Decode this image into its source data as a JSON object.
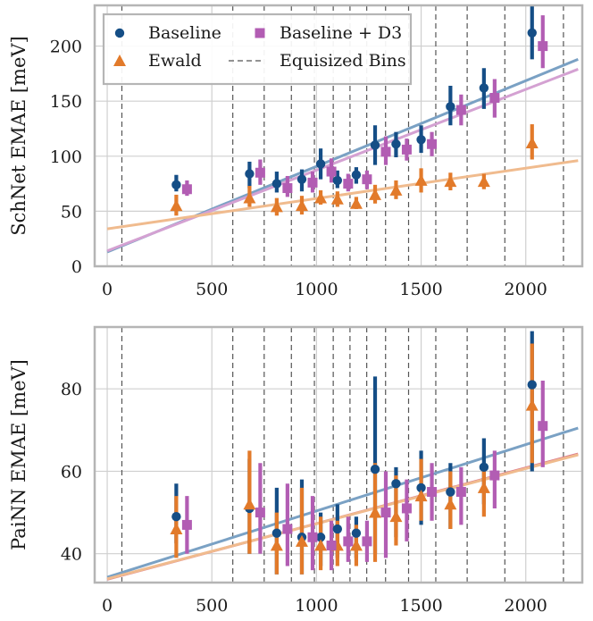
{
  "colors": {
    "baseline": "#154e86",
    "ewald": "#e27a2a",
    "d3": "#b25db3",
    "baseline_fit": "#7aa1c4",
    "ewald_fit": "#f0bb8e",
    "d3_fit": "#d4a1d2",
    "d3_fit_bottom": "#dd7c8c",
    "bins": "#555555",
    "grid": "#cfcfcf",
    "frame": "#b5b5b5"
  },
  "chart_data": [
    {
      "type": "scatter",
      "ylabel": "SchNet EMAE [meV]",
      "xlim": [
        -60,
        2270
      ],
      "ylim": [
        0,
        237
      ],
      "xticks": [
        0,
        500,
        1000,
        1500,
        2000
      ],
      "xtick_labels": [
        "0",
        "500",
        "1000",
        "1500",
        "2000"
      ],
      "yticks": [
        0,
        50,
        100,
        150,
        200
      ],
      "ytick_labels": [
        "0",
        "50",
        "100",
        "150",
        "200"
      ],
      "grid": true,
      "bins": [
        70,
        600,
        750,
        880,
        990,
        1080,
        1160,
        1240,
        1330,
        1440,
        1570,
        1720,
        1900,
        2180
      ],
      "legend": {
        "placement": "upper-left",
        "entries": [
          {
            "label": "Baseline",
            "series": "baseline",
            "marker": "circle"
          },
          {
            "label": "Baseline + D3",
            "series": "d3",
            "marker": "square"
          },
          {
            "label": "Ewald",
            "series": "ewald",
            "marker": "triangle"
          },
          {
            "label": "Equisized Bins",
            "series": "bins",
            "marker": "dashed-line"
          }
        ]
      },
      "series": [
        {
          "name": "Baseline",
          "key": "baseline",
          "marker": "circle",
          "x_offset": 0,
          "points": [
            {
              "x": 330,
              "y": 74,
              "lo": 68,
              "hi": 83
            },
            {
              "x": 680,
              "y": 84,
              "lo": 71,
              "hi": 95
            },
            {
              "x": 810,
              "y": 75,
              "lo": 67,
              "hi": 86
            },
            {
              "x": 930,
              "y": 79,
              "lo": 68,
              "hi": 88
            },
            {
              "x": 1020,
              "y": 93,
              "lo": 79,
              "hi": 107
            },
            {
              "x": 1100,
              "y": 78,
              "lo": 71,
              "hi": 87
            },
            {
              "x": 1190,
              "y": 83,
              "lo": 75,
              "hi": 90
            },
            {
              "x": 1280,
              "y": 110,
              "lo": 92,
              "hi": 128
            },
            {
              "x": 1380,
              "y": 111,
              "lo": 99,
              "hi": 122
            },
            {
              "x": 1500,
              "y": 115,
              "lo": 103,
              "hi": 128
            },
            {
              "x": 1640,
              "y": 145,
              "lo": 128,
              "hi": 164
            },
            {
              "x": 1800,
              "y": 162,
              "lo": 143,
              "hi": 180
            },
            {
              "x": 2030,
              "y": 212,
              "lo": 188,
              "hi": 240
            }
          ]
        },
        {
          "name": "Ewald",
          "key": "ewald",
          "marker": "triangle",
          "x_offset": 0,
          "points": [
            {
              "x": 330,
              "y": 55,
              "lo": 46,
              "hi": 65
            },
            {
              "x": 680,
              "y": 62,
              "lo": 54,
              "hi": 73
            },
            {
              "x": 810,
              "y": 54,
              "lo": 46,
              "hi": 62
            },
            {
              "x": 930,
              "y": 55,
              "lo": 47,
              "hi": 64
            },
            {
              "x": 1020,
              "y": 62,
              "lo": 56,
              "hi": 69
            },
            {
              "x": 1100,
              "y": 61,
              "lo": 54,
              "hi": 68
            },
            {
              "x": 1190,
              "y": 57,
              "lo": 52,
              "hi": 63
            },
            {
              "x": 1280,
              "y": 65,
              "lo": 57,
              "hi": 74
            },
            {
              "x": 1380,
              "y": 69,
              "lo": 61,
              "hi": 78
            },
            {
              "x": 1500,
              "y": 78,
              "lo": 67,
              "hi": 89
            },
            {
              "x": 1640,
              "y": 77,
              "lo": 69,
              "hi": 85
            },
            {
              "x": 1800,
              "y": 77,
              "lo": 70,
              "hi": 84
            },
            {
              "x": 2030,
              "y": 112,
              "lo": 97,
              "hi": 129
            }
          ]
        },
        {
          "name": "Baseline + D3",
          "key": "d3",
          "marker": "square",
          "x_offset": 12,
          "points": [
            {
              "x": 330,
              "y": 70,
              "lo": 64,
              "hi": 78
            },
            {
              "x": 680,
              "y": 85,
              "lo": 74,
              "hi": 97
            },
            {
              "x": 810,
              "y": 71,
              "lo": 63,
              "hi": 82
            },
            {
              "x": 930,
              "y": 76,
              "lo": 67,
              "hi": 86
            },
            {
              "x": 1020,
              "y": 86,
              "lo": 76,
              "hi": 98
            },
            {
              "x": 1100,
              "y": 75,
              "lo": 68,
              "hi": 84
            },
            {
              "x": 1190,
              "y": 79,
              "lo": 70,
              "hi": 87
            },
            {
              "x": 1280,
              "y": 104,
              "lo": 92,
              "hi": 118
            },
            {
              "x": 1380,
              "y": 106,
              "lo": 96,
              "hi": 116
            },
            {
              "x": 1500,
              "y": 111,
              "lo": 100,
              "hi": 122
            },
            {
              "x": 1640,
              "y": 142,
              "lo": 128,
              "hi": 156
            },
            {
              "x": 1800,
              "y": 153,
              "lo": 135,
              "hi": 170
            },
            {
              "x": 2030,
              "y": 200,
              "lo": 180,
              "hi": 228
            }
          ]
        }
      ],
      "fits": [
        {
          "key": "baseline_fit",
          "x": [
            0,
            2250
          ],
          "y": [
            13,
            188
          ]
        },
        {
          "key": "d3_fit",
          "x": [
            0,
            2250
          ],
          "y": [
            14,
            179
          ]
        },
        {
          "key": "ewald_fit",
          "x": [
            0,
            2250
          ],
          "y": [
            34,
            96
          ]
        }
      ]
    },
    {
      "type": "scatter",
      "ylabel": "PaiNN EMAE [meV]",
      "xlim": [
        -60,
        2270
      ],
      "ylim": [
        33,
        95
      ],
      "xticks": [
        0,
        500,
        1000,
        1500,
        2000
      ],
      "xtick_labels": [
        "0",
        "500",
        "1000",
        "1500",
        "2000"
      ],
      "yticks": [
        40,
        60,
        80
      ],
      "ytick_labels": [
        "40",
        "60",
        "80"
      ],
      "grid": true,
      "bins": [
        70,
        600,
        750,
        880,
        990,
        1080,
        1160,
        1240,
        1330,
        1440,
        1570,
        1720,
        1900,
        2180
      ],
      "series": [
        {
          "name": "Baseline",
          "key": "baseline",
          "marker": "circle",
          "x_offset": 0,
          "points": [
            {
              "x": 330,
              "y": 49,
              "lo": 42.5,
              "hi": 57
            },
            {
              "x": 680,
              "y": 51,
              "lo": 40,
              "hi": 63
            },
            {
              "x": 810,
              "y": 45,
              "lo": 35,
              "hi": 56
            },
            {
              "x": 930,
              "y": 44,
              "lo": 35,
              "hi": 58
            },
            {
              "x": 1020,
              "y": 44,
              "lo": 37,
              "hi": 50
            },
            {
              "x": 1100,
              "y": 46,
              "lo": 39,
              "hi": 52
            },
            {
              "x": 1190,
              "y": 45,
              "lo": 39,
              "hi": 49
            },
            {
              "x": 1280,
              "y": 60.5,
              "lo": 40,
              "hi": 83
            },
            {
              "x": 1380,
              "y": 57,
              "lo": 44,
              "hi": 61
            },
            {
              "x": 1500,
              "y": 56,
              "lo": 47,
              "hi": 65
            },
            {
              "x": 1640,
              "y": 55,
              "lo": 46,
              "hi": 62
            },
            {
              "x": 1800,
              "y": 61,
              "lo": 52,
              "hi": 68
            },
            {
              "x": 2030,
              "y": 81,
              "lo": 60,
              "hi": 94
            }
          ]
        },
        {
          "name": "Ewald",
          "key": "ewald",
          "marker": "triangle",
          "x_offset": 0,
          "points": [
            {
              "x": 330,
              "y": 46,
              "lo": 39,
              "hi": 54
            },
            {
              "x": 680,
              "y": 52,
              "lo": 40,
              "hi": 65
            },
            {
              "x": 810,
              "y": 42,
              "lo": 35,
              "hi": 50
            },
            {
              "x": 930,
              "y": 43,
              "lo": 35,
              "hi": 56
            },
            {
              "x": 1020,
              "y": 42,
              "lo": 36,
              "hi": 49
            },
            {
              "x": 1100,
              "y": 42,
              "lo": 37,
              "hi": 48
            },
            {
              "x": 1190,
              "y": 42,
              "lo": 37,
              "hi": 47
            },
            {
              "x": 1280,
              "y": 50,
              "lo": 38,
              "hi": 62
            },
            {
              "x": 1380,
              "y": 49,
              "lo": 42,
              "hi": 59
            },
            {
              "x": 1500,
              "y": 54,
              "lo": 48,
              "hi": 63
            },
            {
              "x": 1640,
              "y": 52,
              "lo": 46,
              "hi": 60
            },
            {
              "x": 1800,
              "y": 56,
              "lo": 49,
              "hi": 62
            },
            {
              "x": 2030,
              "y": 76,
              "lo": 62,
              "hi": 91
            }
          ]
        },
        {
          "name": "Baseline + D3",
          "key": "d3",
          "marker": "square",
          "x_offset": 12,
          "points": [
            {
              "x": 330,
              "y": 47,
              "lo": 40,
              "hi": 54
            },
            {
              "x": 680,
              "y": 50,
              "lo": 40,
              "hi": 62
            },
            {
              "x": 810,
              "y": 46,
              "lo": 37,
              "hi": 57
            },
            {
              "x": 930,
              "y": 44,
              "lo": 36,
              "hi": 54
            },
            {
              "x": 1020,
              "y": 42,
              "lo": 36,
              "hi": 48
            },
            {
              "x": 1100,
              "y": 43,
              "lo": 38,
              "hi": 49
            },
            {
              "x": 1190,
              "y": 43,
              "lo": 38,
              "hi": 48
            },
            {
              "x": 1280,
              "y": 50,
              "lo": 39,
              "hi": 60
            },
            {
              "x": 1380,
              "y": 51,
              "lo": 43,
              "hi": 58
            },
            {
              "x": 1500,
              "y": 55,
              "lo": 48,
              "hi": 62
            },
            {
              "x": 1640,
              "y": 55,
              "lo": 47,
              "hi": 61
            },
            {
              "x": 1800,
              "y": 59,
              "lo": 51,
              "hi": 65
            },
            {
              "x": 2030,
              "y": 71,
              "lo": 61,
              "hi": 82
            }
          ]
        }
      ],
      "fits": [
        {
          "key": "baseline_fit",
          "x": [
            0,
            2250
          ],
          "y": [
            34.3,
            70.5
          ]
        },
        {
          "key": "d3_fit_bottom",
          "x": [
            0,
            2250
          ],
          "y": [
            33.8,
            64.2
          ]
        },
        {
          "key": "ewald_fit",
          "x": [
            0,
            2250
          ],
          "y": [
            33.9,
            64.0
          ]
        }
      ]
    }
  ]
}
